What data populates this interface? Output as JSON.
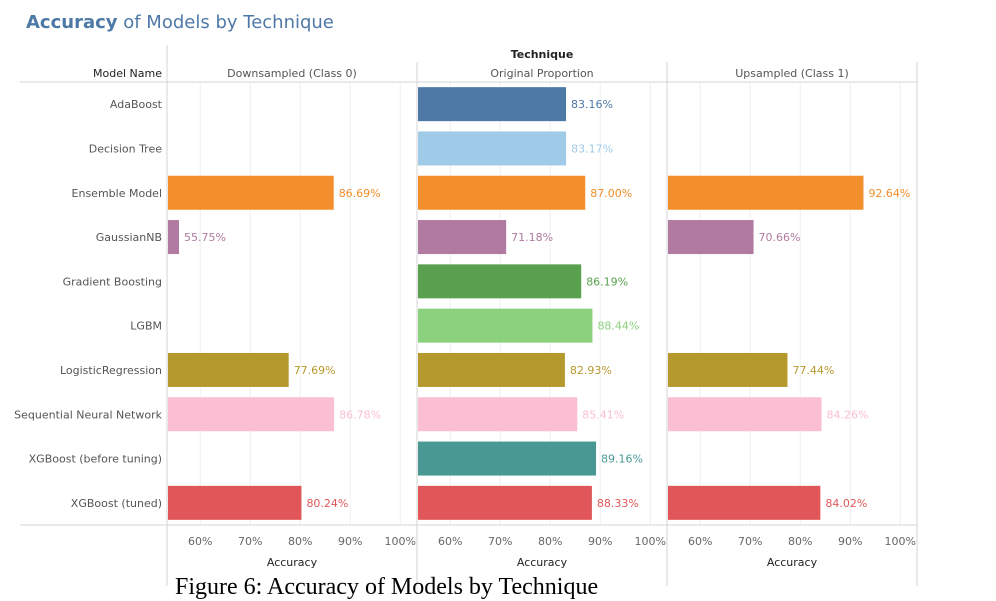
{
  "title_bold": "Accuracy",
  "title_rest": " of Models by Technique",
  "caption": "Figure 6: Accuracy of Models by Technique",
  "chart_data": {
    "type": "bar",
    "orientation": "horizontal",
    "row_header": "Model Name",
    "column_group_header": "Technique",
    "xlabel": "Accuracy",
    "xlim": [
      53.35,
      103.35
    ],
    "xticks": [
      "60%",
      "70%",
      "80%",
      "90%",
      "100%"
    ],
    "xtick_values": [
      60,
      70,
      80,
      90,
      100
    ],
    "grid": true,
    "categories": [
      "AdaBoost",
      "Decision Tree",
      "Ensemble Model",
      "GaussianNB",
      "Gradient Boosting",
      "LGBM",
      "LogisticRegression",
      "Sequential Neural Network",
      "XGBoost (before tuning)",
      "XGBoost (tuned)"
    ],
    "colors": [
      "#4e79a7",
      "#a0cbe8",
      "#f28e2b",
      "#b07aa1",
      "#59a14f",
      "#8cd17d",
      "#b6992d",
      "#fabfd2",
      "#499894",
      "#e15759"
    ],
    "panels": [
      {
        "name": "Downsampled (Class 0)",
        "values": [
          null,
          null,
          86.69,
          55.75,
          null,
          null,
          77.69,
          86.78,
          null,
          80.24
        ]
      },
      {
        "name": "Original Proportion",
        "values": [
          83.16,
          83.17,
          87.0,
          71.18,
          86.19,
          88.44,
          82.93,
          85.41,
          89.16,
          88.33
        ]
      },
      {
        "name": "Upsampled (Class 1)",
        "values": [
          null,
          null,
          92.64,
          70.66,
          null,
          null,
          77.44,
          84.26,
          null,
          84.02
        ]
      }
    ]
  }
}
